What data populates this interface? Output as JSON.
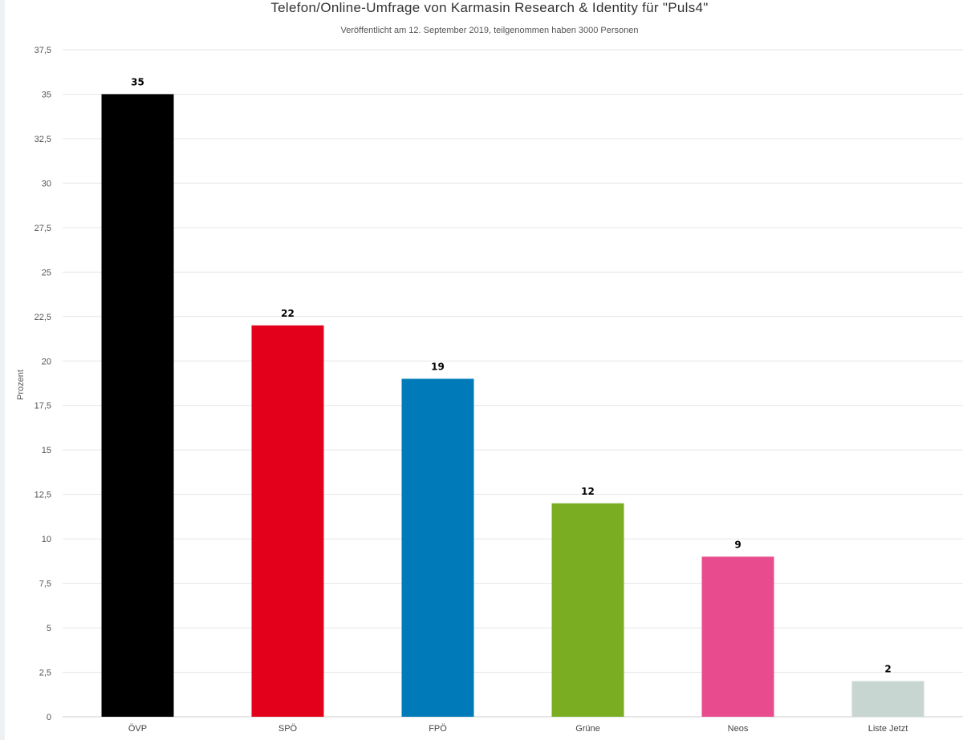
{
  "chart_data": {
    "type": "bar",
    "title": "Telefon/Online-Umfrage von Karmasin Research & Identity für \"Puls4\"",
    "subtitle": "Veröffentlicht am 12. September 2019, teilgenommen haben 3000 Personen",
    "xlabel": "",
    "ylabel": "Prozent",
    "ylim": [
      0,
      37.5
    ],
    "yticks": [
      0,
      2.5,
      5,
      7.5,
      10,
      12.5,
      15,
      17.5,
      20,
      22.5,
      25,
      27.5,
      30,
      32.5,
      35,
      37.5
    ],
    "ytick_labels": [
      "0",
      "2,5",
      "5",
      "7,5",
      "10",
      "12,5",
      "15",
      "17,5",
      "20",
      "22,5",
      "25",
      "27,5",
      "30",
      "32,5",
      "35",
      "37,5"
    ],
    "categories": [
      "ÖVP",
      "SPÖ",
      "FPÖ",
      "Grüne",
      "Neos",
      "Liste Jetzt"
    ],
    "values": [
      35,
      22,
      19,
      12,
      9,
      2
    ],
    "colors": [
      "#000000",
      "#e2001a",
      "#007ab8",
      "#7aad22",
      "#e84c8e",
      "#c8d6d1"
    ],
    "data_labels": [
      "35",
      "22",
      "19",
      "12",
      "9",
      "2"
    ],
    "grid": true,
    "legend": "none"
  }
}
